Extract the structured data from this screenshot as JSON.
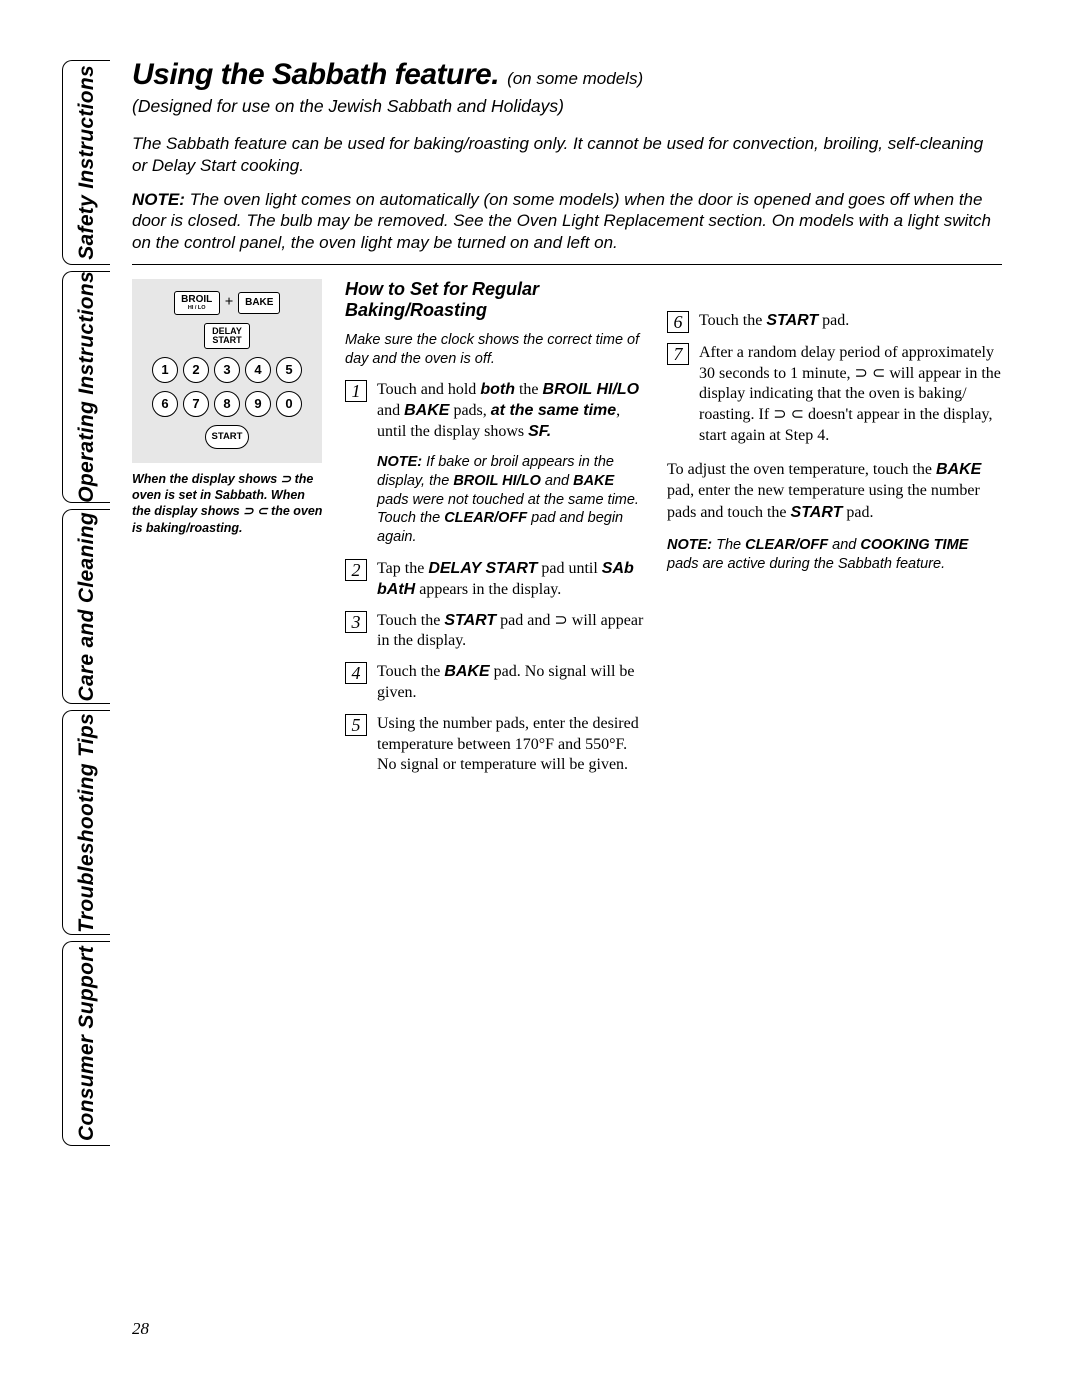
{
  "page_number": "28",
  "tabs": {
    "safety": "Safety Instructions",
    "operating": "Operating Instructions",
    "care": "Care and Cleaning",
    "trouble": "Troubleshooting Tips",
    "consumer": "Consumer Support"
  },
  "title_main": "Using the Sabbath feature.",
  "title_sub": "(on some models)",
  "subtitle": "(Designed for use on the Jewish Sabbath and Holidays)",
  "intro": "The Sabbath feature can be used for baking/roasting only. It cannot be used for convection, broiling, self-cleaning or Delay Start cooking.",
  "intro_note_lead": "NOTE:",
  "intro_note": " The oven light comes on automatically (on some models) when the door is opened and goes off when the door is closed. The bulb may be removed. See the Oven Light Replacement section. On models with a light switch on the control panel, the oven light may be turned on and left on.",
  "panel": {
    "broil": "BROIL",
    "broil_sub": "HI / LO",
    "plus": "+",
    "bake": "BAKE",
    "delay_l1": "DELAY",
    "delay_l2": "START",
    "nums_row1": [
      "1",
      "2",
      "3",
      "4",
      "5"
    ],
    "nums_row2": [
      "6",
      "7",
      "8",
      "9",
      "0"
    ],
    "start": "START"
  },
  "panel_caption": "When the display shows ⊃ the oven is set in Sabbath. When the display shows ⊃ ⊂ the oven is baking/roasting.",
  "section_title": "How to Set for Regular Baking/Roasting",
  "preamble": "Make sure the clock shows the correct time of day and the oven is off.",
  "steps_left": [
    {
      "n": "1",
      "html": "Touch and hold <span class='bi'>both</span> the <span class='bi'>BROIL HI/LO</span> and <span class='bi'>BAKE</span> pads, <span class='bi'>at the same time</span>, until the display shows <span class='bi'>SF.</span>"
    },
    {
      "n": "2",
      "html": "Tap the <span class='bi'>DELAY START</span> pad until <span class='bi'>SAb bAtH</span> appears in the display."
    },
    {
      "n": "3",
      "html": "Touch the <span class='bi'>START</span> pad and ⊃ will appear in the display."
    },
    {
      "n": "4",
      "html": "Touch the <span class='bi'>BAKE</span> pad. No signal will be given."
    },
    {
      "n": "5",
      "html": "Using the number pads, enter the desired temperature between 170°F and 550°F. No signal or temperature will be given."
    }
  ],
  "step1_note_lead": "NOTE:",
  "step1_note": " If bake or broil appears in the display, the <b>BROIL HI/LO</b> and <b>BAKE</b> pads were not touched at the same time. Touch the <b>CLEAR/OFF</b> pad and begin again.",
  "steps_right": [
    {
      "n": "6",
      "html": "Touch the <span class='bi'>START</span> pad."
    },
    {
      "n": "7",
      "html": "After a random delay period of approximately 30 seconds to 1 minute, ⊃ ⊂ will appear in the display indicating that the oven is baking/ roasting. If ⊃ ⊂ doesn't appear in the display, start again at Step 4."
    }
  ],
  "adjust_html": "To adjust the oven temperature, touch the <span class='bi'>BAKE</span> pad, enter the new temperature using the number pads and touch the <span class='bi'>START</span> pad.",
  "final_note_lead": "NOTE:",
  "final_note": " The <b>CLEAR/OFF</b> and <b>COOKING TIME</b> pads are active during the Sabbath feature."
}
